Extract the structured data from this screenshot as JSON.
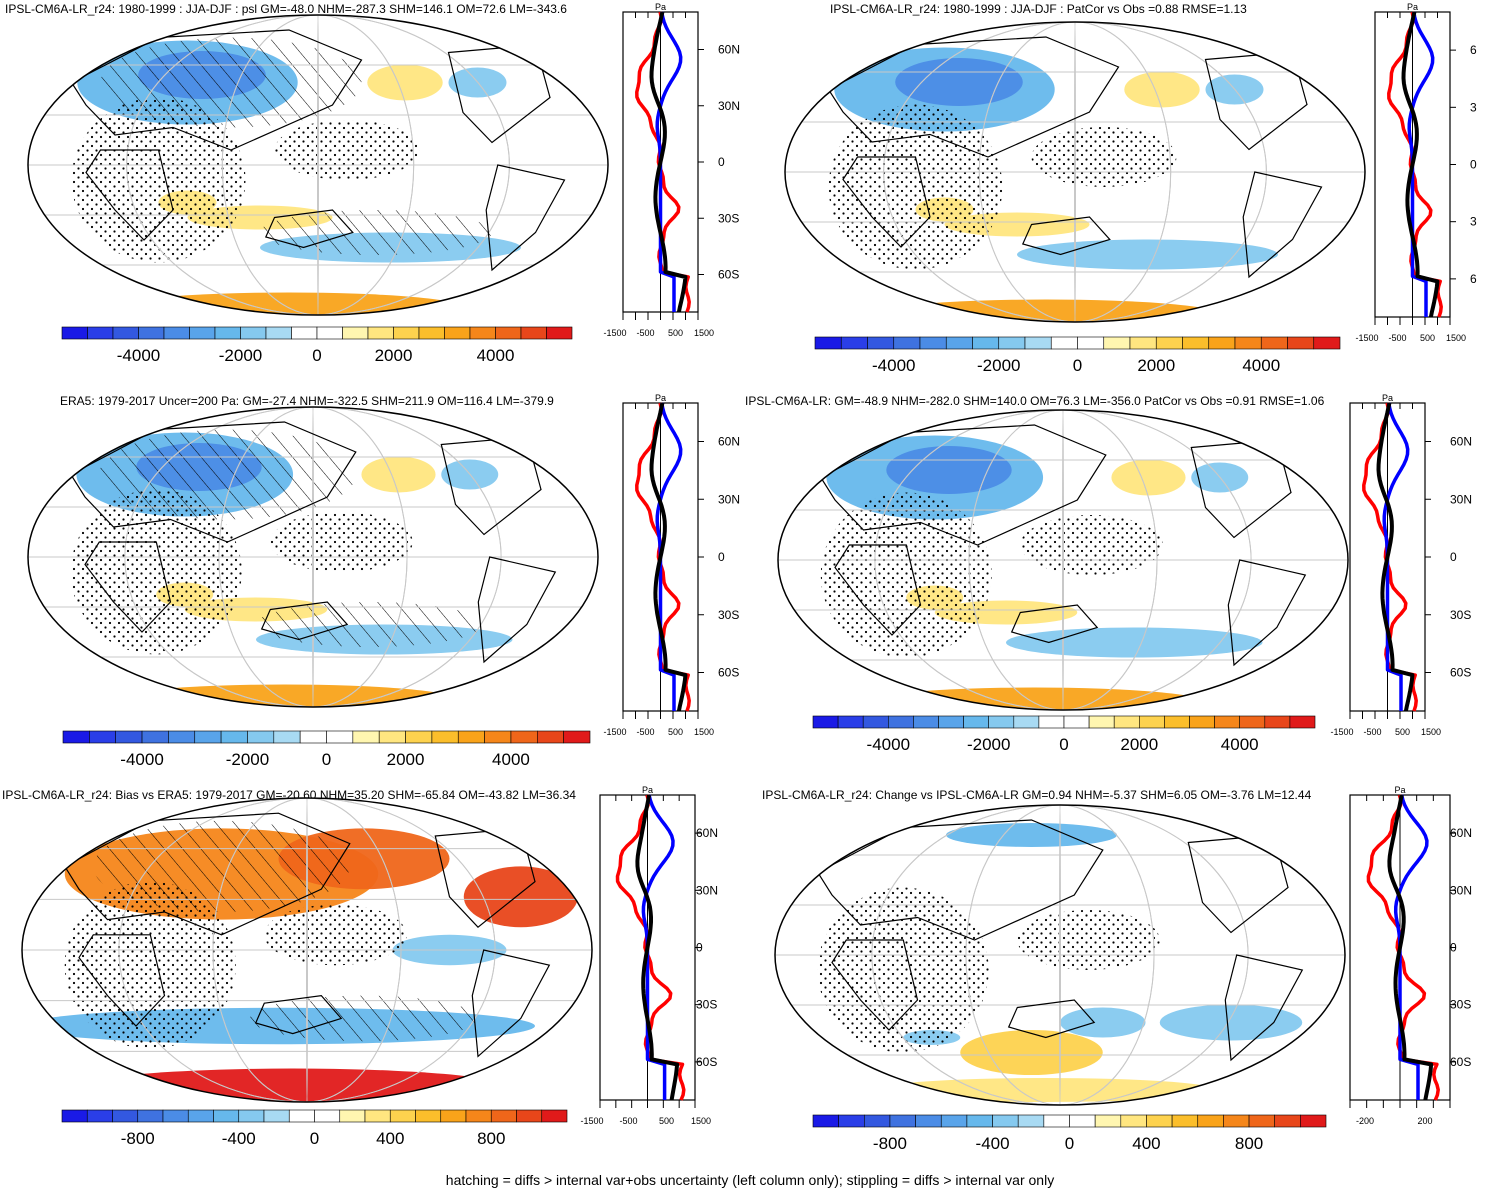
{
  "panels": [
    {
      "title": "IPSL-CM6A-LR_r24: 1980-1999 : JJA-DJF : psl GM=-48.0 NHM=-287.3 SHM=146.1 OM=72.6 LM=-343.6",
      "colorbar_labels": [
        "-4000",
        "-2000",
        "0",
        "2000",
        "4000"
      ],
      "profile_xticks": [
        "-1500",
        "-500",
        "500",
        "1500"
      ],
      "lat_labels": [
        "60N",
        "30N",
        "0",
        "30S",
        "60S"
      ],
      "unit": "Pa"
    },
    {
      "title": "IPSL-CM6A-LR_r24: 1980-1999 : JJA-DJF : PatCor vs Obs =0.88 RMSE=1.13",
      "colorbar_labels": [
        "-4000",
        "-2000",
        "0",
        "2000",
        "4000"
      ],
      "profile_xticks": [
        "-1500",
        "-500",
        "500",
        "1500"
      ],
      "lat_labels": [
        "6",
        "3",
        "0",
        "3",
        "6"
      ],
      "unit": "Pa"
    },
    {
      "title": "ERA5: 1979-2017 Uncer=200 Pa: GM=-27.4 NHM=-322.5 SHM=211.9 OM=116.4 LM=-379.9",
      "colorbar_labels": [
        "-4000",
        "-2000",
        "0",
        "2000",
        "4000"
      ],
      "profile_xticks": [
        "-1500",
        "-500",
        "500",
        "1500"
      ],
      "lat_labels": [
        "60N",
        "30N",
        "0",
        "30S",
        "60S"
      ],
      "unit": "Pa"
    },
    {
      "title": "IPSL-CM6A-LR: GM=-48.9 NHM=-282.0 SHM=140.0 OM=76.3 LM=-356.0 PatCor vs Obs =0.91 RMSE=1.06",
      "colorbar_labels": [
        "-4000",
        "-2000",
        "0",
        "2000",
        "4000"
      ],
      "profile_xticks": [
        "-1500",
        "-500",
        "500",
        "1500"
      ],
      "lat_labels": [
        "60N",
        "30N",
        "0",
        "30S",
        "60S"
      ],
      "unit": "Pa"
    },
    {
      "title": "IPSL-CM6A-LR_r24: Bias vs ERA5: 1979-2017 GM=-20.60 NHM=35.20 SHM=-65.84 OM=-43.82 LM=36.34",
      "colorbar_labels": [
        "-800",
        "-400",
        "0",
        "400",
        "800"
      ],
      "profile_xticks": [
        "-1500",
        "-500",
        "500",
        "1500"
      ],
      "lat_labels": [
        "60N",
        "30N",
        "0",
        "30S",
        "60S"
      ],
      "unit": "Pa"
    },
    {
      "title": "IPSL-CM6A-LR_r24: Change vs IPSL-CM6A-LR GM=0.94 NHM=-5.37 SHM=6.05 OM=-3.76 LM=12.44",
      "colorbar_labels": [
        "-800",
        "-400",
        "0",
        "400",
        "800"
      ],
      "profile_xticks": [
        "-200",
        "200"
      ],
      "lat_labels": [
        "60N",
        "30N",
        "0",
        "30S",
        "60S"
      ],
      "unit": "Pa"
    }
  ],
  "palette": [
    "#1a1ae6",
    "#2a3ee8",
    "#3358e0",
    "#3f72e0",
    "#4b8ce6",
    "#59a4ea",
    "#66b8ec",
    "#85c9ef",
    "#a8daf3",
    "#ffffff",
    "#ffffff",
    "#fff6b0",
    "#ffe680",
    "#fdd24e",
    "#fbbe2b",
    "#f9a31a",
    "#f5861a",
    "#ef661a",
    "#e8461a",
    "#e01a1a"
  ],
  "line_colors": {
    "red": "#ff0000",
    "blue": "#0000ff",
    "black": "#000000"
  },
  "footer": "hatching = diffs > internal var+obs uncertainty (left column only); stippling = diffs > internal var only"
}
